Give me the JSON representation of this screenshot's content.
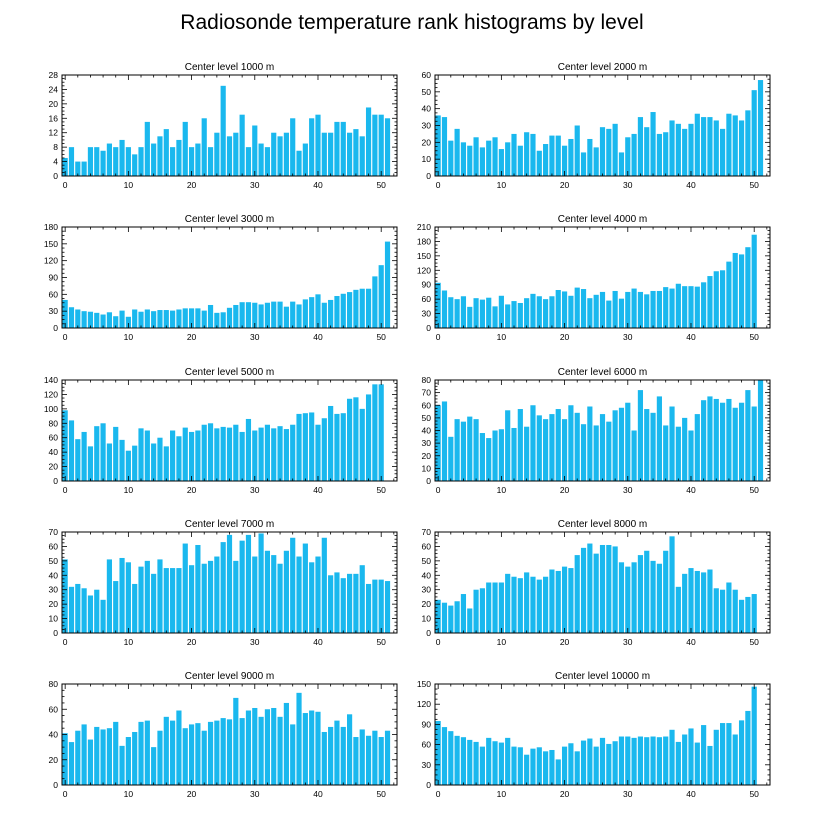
{
  "title": "Radiosonde temperature rank histograms by level",
  "chart_data": [
    {
      "type": "bar",
      "title": "Center level 1000 m",
      "x": [
        0,
        1,
        2,
        3,
        4,
        5,
        6,
        7,
        8,
        9,
        10,
        11,
        12,
        13,
        14,
        15,
        16,
        17,
        18,
        19,
        20,
        21,
        22,
        23,
        24,
        25,
        26,
        27,
        28,
        29,
        30,
        31,
        32,
        33,
        34,
        35,
        36,
        37,
        38,
        39,
        40,
        41,
        42,
        43,
        44,
        45,
        46,
        47,
        48,
        49,
        50,
        51
      ],
      "values": [
        5,
        8,
        4,
        4,
        8,
        8,
        7,
        9,
        8,
        10,
        8,
        6,
        8,
        15,
        9,
        11,
        13,
        8,
        10,
        15,
        8,
        9,
        16,
        8,
        12,
        25,
        11,
        12,
        17,
        8,
        14,
        9,
        8,
        12,
        11,
        12,
        16,
        7,
        9,
        16,
        17,
        12,
        12,
        15,
        15,
        12,
        13,
        11,
        19,
        17,
        17,
        16
      ],
      "ylim": [
        0,
        28
      ],
      "yticks": [
        0,
        4,
        8,
        12,
        16,
        20,
        24,
        28
      ],
      "xticks": [
        0,
        10,
        20,
        30,
        40,
        50
      ]
    },
    {
      "type": "bar",
      "title": "Center level 2000 m",
      "x": [
        0,
        1,
        2,
        3,
        4,
        5,
        6,
        7,
        8,
        9,
        10,
        11,
        12,
        13,
        14,
        15,
        16,
        17,
        18,
        19,
        20,
        21,
        22,
        23,
        24,
        25,
        26,
        27,
        28,
        29,
        30,
        31,
        32,
        33,
        34,
        35,
        36,
        37,
        38,
        39,
        40,
        41,
        42,
        43,
        44,
        45,
        46,
        47,
        48,
        49,
        50,
        51
      ],
      "values": [
        36,
        35,
        21,
        28,
        20,
        18,
        23,
        17,
        21,
        23,
        16,
        20,
        25,
        18,
        26,
        25,
        15,
        19,
        24,
        24,
        18,
        22,
        30,
        14,
        22,
        17,
        29,
        28,
        31,
        14,
        23,
        25,
        35,
        29,
        38,
        25,
        26,
        33,
        31,
        28,
        31,
        37,
        35,
        35,
        33,
        28,
        37,
        36,
        33,
        39,
        51,
        57
      ],
      "ylim": [
        0,
        60
      ],
      "yticks": [
        0,
        10,
        20,
        30,
        40,
        50,
        60
      ],
      "xticks": [
        0,
        10,
        20,
        30,
        40,
        50
      ]
    },
    {
      "type": "bar",
      "title": "Center level 3000 m",
      "x": [
        0,
        1,
        2,
        3,
        4,
        5,
        6,
        7,
        8,
        9,
        10,
        11,
        12,
        13,
        14,
        15,
        16,
        17,
        18,
        19,
        20,
        21,
        22,
        23,
        24,
        25,
        26,
        27,
        28,
        29,
        30,
        31,
        32,
        33,
        34,
        35,
        36,
        37,
        38,
        39,
        40,
        41,
        42,
        43,
        44,
        45,
        46,
        47,
        48,
        49,
        50,
        51
      ],
      "values": [
        50,
        37,
        33,
        30,
        29,
        27,
        24,
        28,
        21,
        31,
        20,
        33,
        29,
        33,
        30,
        32,
        32,
        31,
        33,
        35,
        35,
        35,
        31,
        41,
        27,
        28,
        36,
        41,
        46,
        46,
        45,
        42,
        45,
        47,
        47,
        38,
        47,
        42,
        51,
        55,
        60,
        45,
        50,
        57,
        61,
        64,
        68,
        70,
        70,
        92,
        112,
        154
      ],
      "ylim": [
        0,
        180
      ],
      "yticks": [
        0,
        30,
        60,
        90,
        120,
        150,
        180
      ],
      "xticks": [
        0,
        10,
        20,
        30,
        40,
        50
      ]
    },
    {
      "type": "bar",
      "title": "Center level 4000 m",
      "x": [
        0,
        1,
        2,
        3,
        4,
        5,
        6,
        7,
        8,
        9,
        10,
        11,
        12,
        13,
        14,
        15,
        16,
        17,
        18,
        19,
        20,
        21,
        22,
        23,
        24,
        25,
        26,
        27,
        28,
        29,
        30,
        31,
        32,
        33,
        34,
        35,
        36,
        37,
        38,
        39,
        40,
        41,
        42,
        43,
        44,
        45,
        46,
        47,
        48,
        49,
        50,
        51
      ],
      "values": [
        94,
        78,
        64,
        60,
        66,
        44,
        62,
        59,
        63,
        45,
        67,
        49,
        56,
        52,
        62,
        71,
        66,
        60,
        66,
        79,
        76,
        67,
        84,
        81,
        62,
        69,
        75,
        57,
        77,
        61,
        75,
        82,
        75,
        70,
        77,
        77,
        85,
        82,
        92,
        87,
        87,
        86,
        95,
        108,
        118,
        120,
        138,
        156,
        153,
        168,
        194,
        0
      ],
      "ylim": [
        0,
        210
      ],
      "yticks": [
        0,
        30,
        60,
        90,
        120,
        150,
        180,
        210
      ],
      "xticks": [
        0,
        10,
        20,
        30,
        40,
        50
      ]
    },
    {
      "type": "bar",
      "title": "Center level 5000 m",
      "x": [
        0,
        1,
        2,
        3,
        4,
        5,
        6,
        7,
        8,
        9,
        10,
        11,
        12,
        13,
        14,
        15,
        16,
        17,
        18,
        19,
        20,
        21,
        22,
        23,
        24,
        25,
        26,
        27,
        28,
        29,
        30,
        31,
        32,
        33,
        34,
        35,
        36,
        37,
        38,
        39,
        40,
        41,
        42,
        43,
        44,
        45,
        46,
        47,
        48,
        49,
        50,
        51
      ],
      "values": [
        98,
        84,
        58,
        68,
        48,
        76,
        80,
        52,
        75,
        57,
        42,
        49,
        73,
        70,
        52,
        60,
        48,
        70,
        62,
        74,
        68,
        70,
        78,
        80,
        73,
        75,
        74,
        78,
        68,
        86,
        70,
        74,
        78,
        73,
        76,
        72,
        78,
        93,
        94,
        95,
        78,
        87,
        104,
        93,
        94,
        114,
        116,
        100,
        120,
        134,
        134,
        0
      ],
      "ylim": [
        0,
        140
      ],
      "yticks": [
        0,
        20,
        40,
        60,
        80,
        100,
        120,
        140
      ],
      "xticks": [
        0,
        10,
        20,
        30,
        40,
        50
      ]
    },
    {
      "type": "bar",
      "title": "Center level 6000 m",
      "x": [
        0,
        1,
        2,
        3,
        4,
        5,
        6,
        7,
        8,
        9,
        10,
        11,
        12,
        13,
        14,
        15,
        16,
        17,
        18,
        19,
        20,
        21,
        22,
        23,
        24,
        25,
        26,
        27,
        28,
        29,
        30,
        31,
        32,
        33,
        34,
        35,
        36,
        37,
        38,
        39,
        40,
        41,
        42,
        43,
        44,
        45,
        46,
        47,
        48,
        49,
        50,
        51
      ],
      "values": [
        60,
        63,
        35,
        49,
        47,
        51,
        49,
        38,
        34,
        40,
        41,
        56,
        42,
        57,
        43,
        60,
        52,
        49,
        53,
        57,
        49,
        60,
        54,
        45,
        59,
        44,
        53,
        47,
        56,
        58,
        62,
        40,
        72,
        57,
        54,
        67,
        44,
        59,
        43,
        50,
        40,
        53,
        64,
        67,
        65,
        62,
        65,
        58,
        62,
        72,
        59,
        80
      ],
      "ylim": [
        0,
        80
      ],
      "yticks": [
        0,
        10,
        20,
        30,
        40,
        50,
        60,
        70,
        80
      ],
      "xticks": [
        0,
        10,
        20,
        30,
        40,
        50
      ]
    },
    {
      "type": "bar",
      "title": "Center level 7000 m",
      "x": [
        0,
        1,
        2,
        3,
        4,
        5,
        6,
        7,
        8,
        9,
        10,
        11,
        12,
        13,
        14,
        15,
        16,
        17,
        18,
        19,
        20,
        21,
        22,
        23,
        24,
        25,
        26,
        27,
        28,
        29,
        30,
        31,
        32,
        33,
        34,
        35,
        36,
        37,
        38,
        39,
        40,
        41,
        42,
        43,
        44,
        45,
        46,
        47,
        48,
        49,
        50,
        51
      ],
      "values": [
        51,
        32,
        34,
        31,
        26,
        30,
        23,
        51,
        36,
        52,
        49,
        34,
        46,
        50,
        41,
        51,
        45,
        45,
        45,
        62,
        47,
        61,
        48,
        50,
        53,
        63,
        68,
        50,
        64,
        68,
        53,
        69,
        57,
        54,
        48,
        57,
        66,
        53,
        62,
        49,
        53,
        66,
        40,
        42,
        38,
        41,
        41,
        47,
        34,
        37,
        37,
        36
      ],
      "ylim": [
        0,
        70
      ],
      "yticks": [
        0,
        10,
        20,
        30,
        40,
        50,
        60,
        70
      ],
      "xticks": [
        0,
        10,
        20,
        30,
        40,
        50
      ]
    },
    {
      "type": "bar",
      "title": "Center level 8000 m",
      "x": [
        0,
        1,
        2,
        3,
        4,
        5,
        6,
        7,
        8,
        9,
        10,
        11,
        12,
        13,
        14,
        15,
        16,
        17,
        18,
        19,
        20,
        21,
        22,
        23,
        24,
        25,
        26,
        27,
        28,
        29,
        30,
        31,
        32,
        33,
        34,
        35,
        36,
        37,
        38,
        39,
        40,
        41,
        42,
        43,
        44,
        45,
        46,
        47,
        48,
        49,
        50,
        51
      ],
      "values": [
        23,
        21,
        19,
        22,
        27,
        17,
        30,
        31,
        35,
        35,
        35,
        41,
        39,
        38,
        42,
        39,
        37,
        39,
        44,
        43,
        46,
        45,
        54,
        59,
        62,
        55,
        61,
        61,
        60,
        49,
        46,
        49,
        54,
        57,
        50,
        48,
        57,
        67,
        32,
        41,
        45,
        43,
        42,
        44,
        31,
        30,
        35,
        30,
        23,
        25,
        27,
        0
      ],
      "ylim": [
        0,
        70
      ],
      "yticks": [
        0,
        10,
        20,
        30,
        40,
        50,
        60,
        70
      ],
      "xticks": [
        0,
        10,
        20,
        30,
        40,
        50
      ]
    },
    {
      "type": "bar",
      "title": "Center level 9000 m",
      "x": [
        0,
        1,
        2,
        3,
        4,
        5,
        6,
        7,
        8,
        9,
        10,
        11,
        12,
        13,
        14,
        15,
        16,
        17,
        18,
        19,
        20,
        21,
        22,
        23,
        24,
        25,
        26,
        27,
        28,
        29,
        30,
        31,
        32,
        33,
        34,
        35,
        36,
        37,
        38,
        39,
        40,
        41,
        42,
        43,
        44,
        45,
        46,
        47,
        48,
        49,
        50,
        51
      ],
      "values": [
        41,
        34,
        43,
        48,
        36,
        46,
        44,
        45,
        50,
        31,
        38,
        42,
        50,
        51,
        30,
        43,
        54,
        51,
        59,
        45,
        48,
        49,
        43,
        50,
        51,
        53,
        52,
        69,
        53,
        59,
        61,
        54,
        60,
        61,
        54,
        65,
        48,
        73,
        57,
        59,
        58,
        42,
        46,
        51,
        46,
        56,
        38,
        44,
        39,
        43,
        38,
        43
      ],
      "ylim": [
        0,
        80
      ],
      "yticks": [
        0,
        20,
        40,
        60,
        80
      ],
      "xticks": [
        0,
        10,
        20,
        30,
        40,
        50
      ]
    },
    {
      "type": "bar",
      "title": "Center level 10000 m",
      "x": [
        0,
        1,
        2,
        3,
        4,
        5,
        6,
        7,
        8,
        9,
        10,
        11,
        12,
        13,
        14,
        15,
        16,
        17,
        18,
        19,
        20,
        21,
        22,
        23,
        24,
        25,
        26,
        27,
        28,
        29,
        30,
        31,
        32,
        33,
        34,
        35,
        36,
        37,
        38,
        39,
        40,
        41,
        42,
        43,
        44,
        45,
        46,
        47,
        48,
        49,
        50,
        51
      ],
      "values": [
        95,
        86,
        80,
        73,
        71,
        67,
        64,
        57,
        70,
        65,
        63,
        70,
        57,
        56,
        45,
        54,
        56,
        50,
        52,
        38,
        57,
        62,
        50,
        66,
        69,
        57,
        70,
        61,
        65,
        72,
        72,
        70,
        72,
        71,
        72,
        71,
        72,
        82,
        64,
        75,
        84,
        63,
        89,
        58,
        82,
        92,
        92,
        75,
        96,
        110,
        146,
        0
      ],
      "ylim": [
        0,
        150
      ],
      "yticks": [
        0,
        30,
        60,
        90,
        120,
        150
      ],
      "xticks": [
        0,
        10,
        20,
        30,
        40,
        50
      ]
    }
  ]
}
